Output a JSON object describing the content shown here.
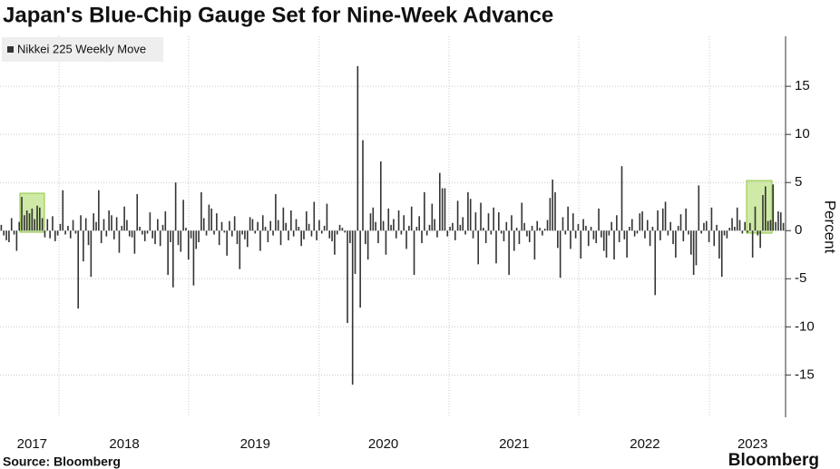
{
  "chart_data": {
    "type": "bar",
    "title": "Japan's Blue-Chip Gauge Set for Nine-Week Advance",
    "y_label": "Percent",
    "source": "Source: Bloomberg",
    "logo": "Bloomberg",
    "grid": true,
    "ylim": [
      -19.4,
      20.2
    ],
    "yticks": [
      15,
      10,
      5,
      0,
      -5,
      -10,
      -15
    ],
    "categories": [
      null,
      null,
      null,
      null,
      null,
      null,
      null,
      null,
      null,
      null,
      null,
      null,
      "2017",
      null,
      null,
      null,
      null,
      null,
      null,
      null,
      null,
      null,
      null,
      null,
      null,
      null,
      null,
      null,
      null,
      null,
      null,
      null,
      null,
      null,
      null,
      null,
      null,
      null,
      null,
      null,
      null,
      null,
      null,
      null,
      null,
      null,
      null,
      null,
      "2018",
      null,
      null,
      null,
      null,
      null,
      null,
      null,
      null,
      null,
      null,
      null,
      null,
      null,
      null,
      null,
      null,
      null,
      null,
      null,
      null,
      null,
      null,
      null,
      null,
      null,
      null,
      null,
      null,
      null,
      null,
      null,
      null,
      null,
      null,
      null,
      null,
      null,
      null,
      null,
      null,
      null,
      null,
      null,
      null,
      null,
      null,
      null,
      null,
      null,
      null,
      "2019",
      null,
      null,
      null,
      null,
      null,
      null,
      null,
      null,
      null,
      null,
      null,
      null,
      null,
      null,
      null,
      null,
      null,
      null,
      null,
      null,
      null,
      null,
      null,
      null,
      null,
      null,
      null,
      null,
      null,
      null,
      null,
      null,
      null,
      null,
      null,
      null,
      null,
      null,
      null,
      null,
      null,
      null,
      null,
      null,
      null,
      null,
      null,
      null,
      null,
      "2020",
      null,
      null,
      null,
      null,
      null,
      null,
      null,
      null,
      null,
      null,
      null,
      null,
      null,
      null,
      null,
      null,
      null,
      null,
      null,
      null,
      null,
      null,
      null,
      null,
      null,
      null,
      null,
      null,
      null,
      null,
      null,
      null,
      null,
      null,
      null,
      null,
      null,
      null,
      null,
      null,
      null,
      null,
      null,
      null,
      null,
      null,
      null,
      null,
      null,
      null,
      "2021",
      null,
      null,
      null,
      null,
      null,
      null,
      null,
      null,
      null,
      null,
      null,
      null,
      null,
      null,
      null,
      null,
      null,
      null,
      null,
      null,
      null,
      null,
      null,
      null,
      null,
      null,
      null,
      null,
      null,
      null,
      null,
      null,
      null,
      null,
      null,
      null,
      null,
      null,
      null,
      null,
      null,
      null,
      null,
      null,
      null,
      null,
      null,
      null,
      null,
      null,
      "2022",
      null,
      null,
      null,
      null,
      null,
      null,
      null,
      null,
      null,
      null,
      null,
      null,
      null,
      null,
      null,
      null,
      null,
      null,
      null,
      null,
      null,
      null,
      null,
      null,
      null,
      null,
      null,
      null,
      null,
      null,
      null,
      null,
      null,
      null,
      null,
      null,
      null,
      null,
      null,
      null,
      null,
      "2023",
      null,
      null,
      null,
      null,
      null,
      null,
      null,
      null,
      null,
      null,
      null,
      null
    ],
    "series": [
      {
        "name": "Nikkei 225 Weekly Move",
        "color": "#333333",
        "values": [
          0.6,
          -0.5,
          -1.0,
          -1.2,
          1.3,
          -0.4,
          -2.1,
          0.9,
          3.5,
          1.6,
          2.1,
          1.8,
          2.3,
          1.2,
          2.6,
          2.4,
          1.3,
          -0.7,
          1.2,
          -0.8,
          1.5,
          -1.1,
          -0.5,
          0.7,
          4.2,
          -0.4,
          0.5,
          -0.8,
          1.1,
          -0.3,
          -8.1,
          1.6,
          -3.2,
          1.3,
          -1.5,
          -4.8,
          1.8,
          0.9,
          4.2,
          -1.3,
          1.2,
          -0.6,
          2.1,
          1.6,
          -0.9,
          1.4,
          -2.3,
          0.5,
          2.5,
          1.1,
          -0.6,
          -0.7,
          -2.4,
          3.8,
          0.4,
          -0.4,
          -1.1,
          -0.3,
          1.9,
          -0.8,
          -1.4,
          1.2,
          -1.6,
          0.6,
          2.0,
          -4.6,
          -1.2,
          -5.9,
          5.0,
          -1.5,
          -2.2,
          3.2,
          0.3,
          -3.0,
          -0.8,
          -5.7,
          -1.9,
          -1.2,
          4.0,
          1.3,
          -0.5,
          2.7,
          2.3,
          -0.4,
          1.8,
          -1.5,
          0.9,
          -0.2,
          -2.6,
          1.0,
          -0.6,
          1.5,
          -1.4,
          -4.0,
          -0.4,
          -0.9,
          -1.7,
          1.4,
          1.2,
          -0.3,
          0.9,
          -2.1,
          1.6,
          0.4,
          -1.2,
          1.0,
          -0.5,
          3.8,
          1.1,
          -1.5,
          2.4,
          0.8,
          -1.0,
          2.1,
          -0.6,
          1.2,
          0.4,
          -1.6,
          -0.9,
          2.0,
          0.7,
          -0.6,
          3.0,
          -1.0,
          1.1,
          -0.3,
          0.5,
          2.8,
          -0.8,
          -1.1,
          -2.5,
          -0.4,
          0.6,
          0.3,
          -0.2,
          -9.6,
          -1.3,
          -16.0,
          -4.5,
          17.1,
          -8.0,
          9.4,
          -1.4,
          -3.0,
          1.8,
          2.4,
          0.9,
          -1.3,
          7.2,
          1.0,
          -2.5,
          2.3,
          0.6,
          1.2,
          -0.8,
          2.1,
          -0.4,
          1.6,
          -1.9,
          0.5,
          2.5,
          -4.6,
          0.4,
          1.5,
          -1.3,
          4.0,
          -0.5,
          0.6,
          2.8,
          1.2,
          -0.7,
          6.0,
          4.4,
          4.4,
          -0.6,
          0.4,
          0.8,
          -1.0,
          3.1,
          0.6,
          1.4,
          -0.4,
          4.0,
          3.3,
          -0.8,
          1.9,
          -3.5,
          2.9,
          0.3,
          -1.3,
          1.8,
          -0.4,
          2.4,
          -3.4,
          1.9,
          -0.3,
          -1.1,
          0.9,
          -4.6,
          1.6,
          -2.1,
          0.3,
          -1.4,
          2.9,
          0.8,
          -0.6,
          -1.2,
          0.5,
          -3.0,
          1.0,
          0.3,
          -0.5,
          0.2,
          1.1,
          3.4,
          5.3,
          4.0,
          -1.8,
          -4.9,
          1.4,
          -0.4,
          2.5,
          -1.9,
          1.8,
          -0.8,
          0.7,
          -2.9,
          1.2,
          0.5,
          -1.6,
          0.4,
          -0.9,
          -1.3,
          2.3,
          -0.7,
          -2.1,
          -2.8,
          -0.5,
          0.9,
          -3.0,
          1.6,
          -1.2,
          6.7,
          -0.9,
          -2.8,
          0.4,
          1.2,
          -0.6,
          -0.3,
          1.8,
          2.0,
          -0.8,
          1.1,
          -1.6,
          0.4,
          -6.7,
          2.1,
          -1.0,
          2.3,
          3.0,
          -0.5,
          0.9,
          -1.4,
          -2.8,
          0.5,
          1.7,
          -1.1,
          2.3,
          -0.4,
          -2.5,
          -4.6,
          -3.6,
          4.7,
          -0.3,
          0.8,
          1.0,
          -1.2,
          2.4,
          -1.6,
          0.6,
          -2.9,
          -4.8,
          -0.5,
          -0.8,
          0.3,
          1.3,
          0.4,
          2.4,
          1.1,
          -0.3,
          0.9,
          -0.2,
          0.8,
          -2.8,
          2.5,
          -0.5,
          -1.8,
          3.7,
          4.6,
          1.0,
          1.1,
          4.8,
          0.9,
          2.0,
          1.9,
          0.8
        ]
      }
    ]
  }
}
